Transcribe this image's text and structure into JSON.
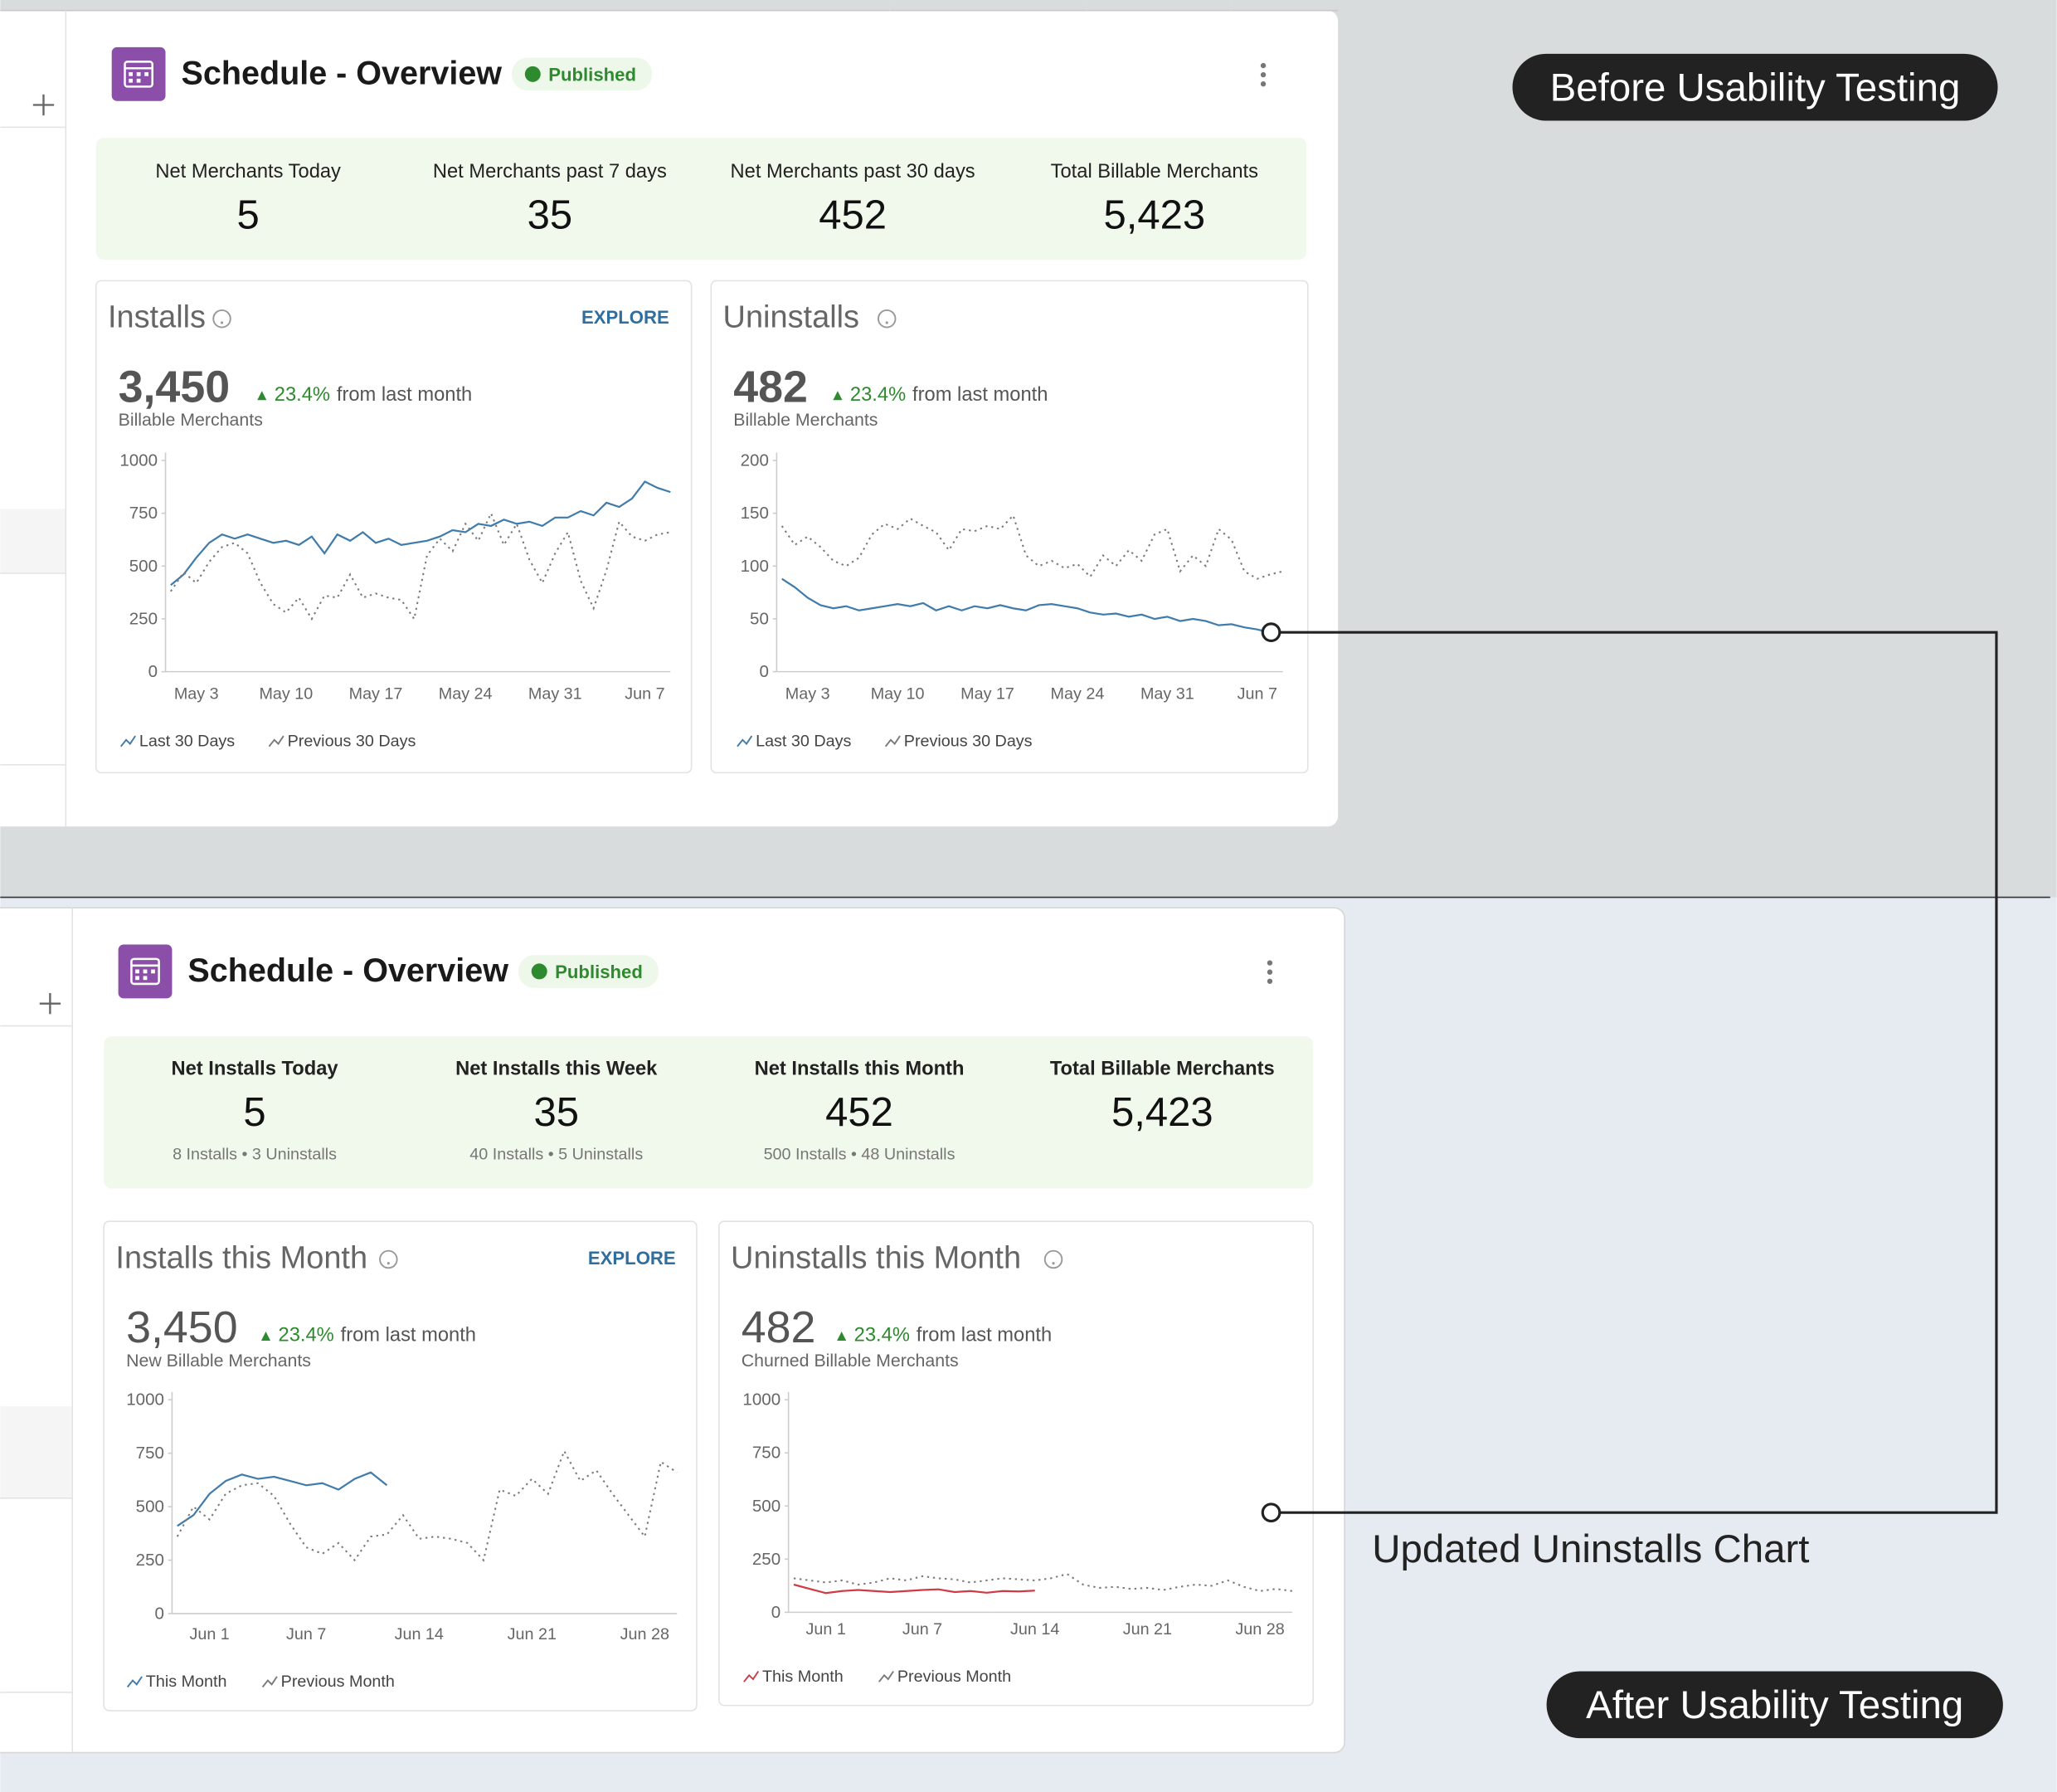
{
  "annotations": {
    "before": "Before Usability Testing",
    "after": "After Usability Testing",
    "updated": "Updated Uninstalls Chart"
  },
  "panels": [
    {
      "title": "Schedule - Overview",
      "status": "Published",
      "kpis": [
        {
          "label": "Net Merchants Today",
          "value": "5"
        },
        {
          "label": "Net Merchants past 7 days",
          "value": "35"
        },
        {
          "label": "Net Merchants past 30 days",
          "value": "452"
        },
        {
          "label": "Total Billable Merchants",
          "value": "5,423"
        }
      ],
      "widgets": [
        {
          "title": "Installs",
          "action": "EXPLORE",
          "total": "3,450",
          "change": "23.4%",
          "change_text": "from last month",
          "subtitle": "Billable Merchants"
        },
        {
          "title": "Uninstalls",
          "total": "482",
          "change": "23.4%",
          "change_text": "from last month",
          "subtitle": "Billable Merchants"
        }
      ]
    },
    {
      "title": "Schedule - Overview",
      "status": "Published",
      "kpis": [
        {
          "label": "Net Installs Today",
          "value": "5",
          "detail": "8 Installs • 3 Uninstalls"
        },
        {
          "label": "Net Installs this Week",
          "value": "35",
          "detail": "40 Installs • 5 Uninstalls"
        },
        {
          "label": "Net Installs this Month",
          "value": "452",
          "detail": "500 Installs • 48 Uninstalls"
        },
        {
          "label": "Total Billable Merchants",
          "value": "5,423"
        }
      ],
      "widgets": [
        {
          "title": "Installs this Month",
          "action": "EXPLORE",
          "total": "3,450",
          "change": "23.4%",
          "change_text": "from last month",
          "subtitle": "New Billable Merchants"
        },
        {
          "title": "Uninstalls this Month",
          "total": "482",
          "change": "23.4%",
          "change_text": "from last month",
          "subtitle": "Churned Billable Merchants"
        }
      ]
    }
  ],
  "chart_data": [
    {
      "type": "line",
      "ylim": [
        0,
        1000
      ],
      "yticks": [
        0,
        250,
        500,
        750,
        1000
      ],
      "categories": [
        null,
        null,
        "May 3",
        null,
        null,
        null,
        null,
        null,
        null,
        "May 10",
        null,
        null,
        null,
        null,
        null,
        null,
        "May 17",
        null,
        null,
        null,
        null,
        null,
        null,
        "May 24",
        null,
        null,
        null,
        null,
        null,
        null,
        "May 31",
        null,
        null,
        null,
        null,
        null,
        null,
        "Jun 7",
        null,
        null
      ],
      "series": [
        {
          "name": "Last 30 Days",
          "color": "#3f7bab",
          "style": "solid",
          "values": [
            410,
            460,
            540,
            610,
            650,
            630,
            650,
            630,
            610,
            620,
            600,
            640,
            560,
            650,
            620,
            660,
            610,
            630,
            600,
            610,
            620,
            640,
            670,
            660,
            700,
            690,
            720,
            700,
            710,
            690,
            730,
            730,
            760,
            740,
            800,
            780,
            820,
            900,
            870,
            850
          ]
        },
        {
          "name": "Previous 30 Days",
          "color": "#7a7a7a",
          "style": "dotted",
          "values": [
            380,
            470,
            420,
            520,
            590,
            610,
            560,
            420,
            320,
            280,
            350,
            250,
            360,
            350,
            460,
            350,
            370,
            350,
            340,
            250,
            550,
            630,
            570,
            700,
            620,
            750,
            600,
            700,
            530,
            420,
            560,
            660,
            430,
            300,
            480,
            710,
            640,
            620,
            650,
            660
          ]
        }
      ]
    },
    {
      "type": "line",
      "ylim": [
        0,
        200
      ],
      "yticks": [
        0,
        50,
        100,
        150,
        200
      ],
      "categories": [
        null,
        null,
        "May 3",
        null,
        null,
        null,
        null,
        null,
        null,
        "May 10",
        null,
        null,
        null,
        null,
        null,
        null,
        "May 17",
        null,
        null,
        null,
        null,
        null,
        null,
        "May 24",
        null,
        null,
        null,
        null,
        null,
        null,
        "May 31",
        null,
        null,
        null,
        null,
        null,
        null,
        "Jun 7",
        null,
        null
      ],
      "series": [
        {
          "name": "Last 30 Days",
          "color": "#3f7bab",
          "style": "solid",
          "values": [
            88,
            80,
            70,
            63,
            60,
            62,
            58,
            60,
            62,
            64,
            62,
            65,
            58,
            62,
            58,
            62,
            60,
            63,
            60,
            58,
            63,
            64,
            62,
            60,
            56,
            54,
            55,
            52,
            54,
            50,
            52,
            48,
            50,
            48,
            44,
            45,
            42,
            40,
            37,
            null
          ]
        },
        {
          "name": "Previous 30 Days",
          "color": "#7a7a7a",
          "style": "dotted",
          "values": [
            138,
            120,
            128,
            118,
            105,
            100,
            108,
            130,
            140,
            135,
            145,
            138,
            132,
            115,
            135,
            133,
            138,
            135,
            148,
            110,
            100,
            105,
            98,
            102,
            90,
            110,
            100,
            115,
            105,
            130,
            135,
            95,
            110,
            100,
            135,
            125,
            95,
            88,
            92,
            95
          ]
        }
      ]
    },
    {
      "type": "line",
      "ylim": [
        0,
        1000
      ],
      "yticks": [
        0,
        250,
        500,
        750,
        1000
      ],
      "categories": [
        null,
        null,
        "Jun 1",
        null,
        null,
        null,
        null,
        null,
        "Jun 7",
        null,
        null,
        null,
        null,
        null,
        null,
        "Jun 14",
        null,
        null,
        null,
        null,
        null,
        null,
        "Jun 21",
        null,
        null,
        null,
        null,
        null,
        null,
        "Jun 28",
        null,
        null
      ],
      "series": [
        {
          "name": "This Month",
          "color": "#3f7bab",
          "style": "solid",
          "values": [
            410,
            460,
            560,
            620,
            650,
            630,
            640,
            620,
            600,
            610,
            580,
            630,
            660,
            600,
            null,
            null,
            null,
            null,
            null,
            null,
            null,
            null,
            null,
            null,
            null,
            null,
            null,
            null,
            null,
            null,
            null,
            null
          ]
        },
        {
          "name": "Previous Month",
          "color": "#7a7a7a",
          "style": "dotted",
          "values": [
            360,
            500,
            440,
            560,
            600,
            610,
            550,
            420,
            310,
            280,
            330,
            250,
            360,
            370,
            460,
            350,
            360,
            350,
            330,
            250,
            580,
            550,
            630,
            560,
            760,
            620,
            670,
            560,
            460,
            360,
            710,
            660
          ]
        }
      ]
    },
    {
      "type": "line",
      "ylim": [
        0,
        1000
      ],
      "yticks": [
        0,
        250,
        500,
        750,
        1000
      ],
      "categories": [
        null,
        null,
        "Jun 1",
        null,
        null,
        null,
        null,
        null,
        "Jun 7",
        null,
        null,
        null,
        null,
        null,
        null,
        "Jun 14",
        null,
        null,
        null,
        null,
        null,
        null,
        "Jun 21",
        null,
        null,
        null,
        null,
        null,
        null,
        "Jun 28",
        null,
        null
      ],
      "series": [
        {
          "name": "This Month",
          "color": "#d03a44",
          "style": "solid",
          "values": [
            130,
            110,
            90,
            100,
            105,
            100,
            95,
            100,
            105,
            108,
            95,
            100,
            92,
            100,
            98,
            102,
            null,
            null,
            null,
            null,
            null,
            null,
            null,
            null,
            null,
            null,
            null,
            null,
            null,
            null,
            null,
            null
          ]
        },
        {
          "name": "Previous Month",
          "color": "#7a7a7a",
          "style": "dotted",
          "values": [
            160,
            150,
            140,
            150,
            130,
            140,
            160,
            150,
            170,
            160,
            155,
            140,
            150,
            160,
            155,
            150,
            160,
            180,
            130,
            115,
            120,
            110,
            115,
            105,
            120,
            130,
            125,
            150,
            120,
            100,
            110,
            100
          ]
        }
      ]
    }
  ]
}
